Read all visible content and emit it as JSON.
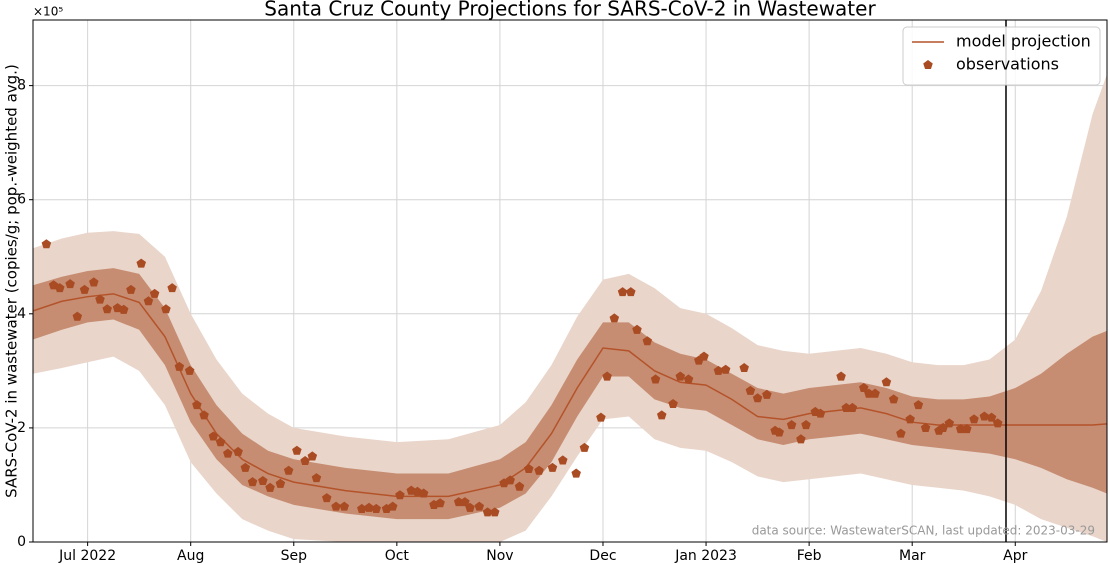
{
  "chart_data": {
    "type": "line",
    "title": "Santa Cruz County Projections for SARS-CoV-2 in Wastewater",
    "ylabel": "SARS-CoV-2 in wastewater (copies/g; pop.-weighted avg.)",
    "y_offset_label": "×10⁵",
    "annotation": "data source: WastewaterSCAN, last updated: 2023-03-29",
    "x": [
      6.47,
      6.75,
      7,
      7.25,
      7.5,
      7.75,
      8,
      8.25,
      8.5,
      8.75,
      9,
      9.5,
      10,
      10.5,
      11,
      11.25,
      11.5,
      11.75,
      12,
      12.25,
      12.5,
      12.75,
      13,
      13.25,
      13.5,
      13.75,
      14,
      14.25,
      14.5,
      14.75,
      15,
      15.25,
      15.5,
      15.75,
      16,
      16.25,
      16.5,
      16.75,
      16.89
    ],
    "series": [
      {
        "name": "model projection",
        "color": "#b4532a",
        "values": [
          4.05,
          4.22,
          4.3,
          4.35,
          4.2,
          3.6,
          2.6,
          1.9,
          1.45,
          1.2,
          1.05,
          0.9,
          0.8,
          0.8,
          1.0,
          1.3,
          1.9,
          2.7,
          3.4,
          3.35,
          3.0,
          2.8,
          2.75,
          2.5,
          2.2,
          2.15,
          2.25,
          2.3,
          2.35,
          2.25,
          2.1,
          2.05,
          2.05,
          2.05,
          2.05,
          2.05,
          2.05,
          2.05,
          2.07
        ],
        "bands": [
          {
            "color": "#e9d5ca",
            "lower": [
              2.95,
              3.05,
              3.15,
              3.25,
              3.0,
              2.4,
              1.4,
              0.85,
              0.4,
              0.2,
              0.05,
              0,
              0,
              0,
              0,
              0.2,
              0.8,
              1.5,
              2.15,
              2.2,
              1.8,
              1.65,
              1.6,
              1.4,
              1.15,
              1.05,
              1.1,
              1.15,
              1.2,
              1.1,
              1.0,
              0.95,
              0.9,
              0.8,
              0.65,
              0.4,
              0.25,
              0.1,
              0
            ],
            "upper": [
              5.15,
              5.32,
              5.42,
              5.45,
              5.4,
              5.0,
              4.0,
              3.2,
              2.6,
              2.25,
              2.0,
              1.85,
              1.75,
              1.8,
              2.05,
              2.45,
              3.1,
              3.95,
              4.6,
              4.7,
              4.45,
              4.1,
              4.0,
              3.75,
              3.45,
              3.35,
              3.3,
              3.35,
              3.4,
              3.3,
              3.15,
              3.1,
              3.1,
              3.2,
              3.55,
              4.4,
              5.7,
              7.5,
              8.2
            ]
          },
          {
            "color": "#c68d72",
            "lower": [
              3.55,
              3.72,
              3.85,
              3.9,
              3.72,
              3.1,
              2.1,
              1.45,
              1.0,
              0.8,
              0.65,
              0.5,
              0.4,
              0.4,
              0.6,
              0.85,
              1.4,
              2.2,
              2.9,
              2.9,
              2.5,
              2.35,
              2.3,
              2.05,
              1.8,
              1.7,
              1.8,
              1.85,
              1.9,
              1.8,
              1.7,
              1.65,
              1.6,
              1.55,
              1.45,
              1.3,
              1.1,
              0.95,
              0.85
            ],
            "upper": [
              4.5,
              4.65,
              4.75,
              4.8,
              4.7,
              4.1,
              3.1,
              2.4,
              1.9,
              1.6,
              1.45,
              1.3,
              1.2,
              1.2,
              1.45,
              1.75,
              2.4,
              3.2,
              3.85,
              3.85,
              3.5,
              3.3,
              3.2,
              2.95,
              2.7,
              2.6,
              2.7,
              2.75,
              2.8,
              2.7,
              2.55,
              2.5,
              2.5,
              2.55,
              2.7,
              2.95,
              3.3,
              3.6,
              3.7
            ]
          }
        ]
      },
      {
        "name": "observations",
        "type": "scatter",
        "marker": "pentagon",
        "color": "#a94b23",
        "x": [
          6.6,
          6.67,
          6.73,
          6.83,
          6.9,
          6.97,
          7.06,
          7.12,
          7.19,
          7.29,
          7.35,
          7.42,
          7.52,
          7.59,
          7.65,
          7.76,
          7.82,
          7.89,
          7.99,
          8.06,
          8.13,
          8.22,
          8.29,
          8.36,
          8.46,
          8.53,
          8.6,
          8.7,
          8.77,
          8.87,
          8.95,
          9.03,
          9.11,
          9.18,
          9.22,
          9.32,
          9.41,
          9.49,
          9.66,
          9.73,
          9.8,
          9.9,
          9.96,
          10.03,
          10.14,
          10.2,
          10.26,
          10.36,
          10.42,
          10.6,
          10.66,
          10.71,
          10.8,
          10.88,
          10.95,
          11.04,
          11.1,
          11.19,
          11.28,
          11.38,
          11.51,
          11.61,
          11.74,
          11.82,
          11.98,
          12.04,
          12.11,
          12.19,
          12.27,
          12.33,
          12.43,
          12.51,
          12.57,
          12.68,
          12.75,
          12.83,
          12.93,
          12.98,
          13.12,
          13.19,
          13.37,
          13.43,
          13.5,
          13.59,
          13.67,
          13.71,
          13.83,
          13.92,
          13.97,
          14.06,
          14.11,
          14.31,
          14.36,
          14.42,
          14.53,
          14.58,
          14.64,
          14.75,
          14.82,
          14.89,
          14.98,
          15.06,
          15.13,
          15.26,
          15.3,
          15.36,
          15.47,
          15.53,
          15.6,
          15.7,
          15.77,
          15.83
        ],
        "values": [
          5.22,
          4.5,
          4.45,
          4.52,
          3.95,
          4.42,
          4.55,
          4.25,
          4.08,
          4.1,
          4.07,
          4.42,
          4.88,
          4.22,
          4.35,
          4.08,
          4.45,
          3.07,
          3.0,
          2.4,
          2.22,
          1.85,
          1.75,
          1.55,
          1.58,
          1.3,
          1.05,
          1.07,
          0.95,
          1.02,
          1.25,
          1.6,
          1.42,
          1.5,
          1.12,
          0.77,
          0.62,
          0.62,
          0.58,
          0.6,
          0.58,
          0.58,
          0.62,
          0.82,
          0.9,
          0.88,
          0.85,
          0.65,
          0.68,
          0.7,
          0.7,
          0.6,
          0.62,
          0.52,
          0.52,
          1.03,
          1.08,
          0.97,
          1.28,
          1.25,
          1.3,
          1.43,
          1.2,
          1.65,
          2.18,
          2.9,
          3.92,
          4.38,
          4.38,
          3.72,
          3.52,
          2.85,
          2.22,
          2.42,
          2.9,
          2.85,
          3.18,
          3.25,
          3.0,
          3.02,
          3.05,
          2.65,
          2.52,
          2.58,
          1.95,
          1.92,
          2.05,
          1.8,
          2.05,
          2.28,
          2.25,
          2.9,
          2.35,
          2.35,
          2.7,
          2.6,
          2.6,
          2.8,
          2.5,
          1.9,
          2.15,
          2.4,
          2.0,
          1.95,
          2.0,
          2.08,
          1.98,
          1.98,
          2.15,
          2.2,
          2.18,
          2.08
        ]
      }
    ],
    "vline": {
      "x": 15.91,
      "color": "#000000"
    },
    "xlim": [
      6.47,
      16.89
    ],
    "xticks": [
      {
        "value": 7,
        "label": "Jul 2022"
      },
      {
        "value": 8,
        "label": "Aug"
      },
      {
        "value": 9,
        "label": "Sep"
      },
      {
        "value": 10,
        "label": "Oct"
      },
      {
        "value": 11,
        "label": "Nov"
      },
      {
        "value": 12,
        "label": "Dec"
      },
      {
        "value": 13,
        "label": "Jan 2023"
      },
      {
        "value": 14,
        "label": "Feb"
      },
      {
        "value": 15,
        "label": "Mar"
      },
      {
        "value": 16,
        "label": "Apr"
      }
    ],
    "ylim": [
      0,
      9.15
    ],
    "yticks": [
      0,
      2,
      4,
      6,
      8
    ],
    "grid": true,
    "legend": "upper right"
  }
}
